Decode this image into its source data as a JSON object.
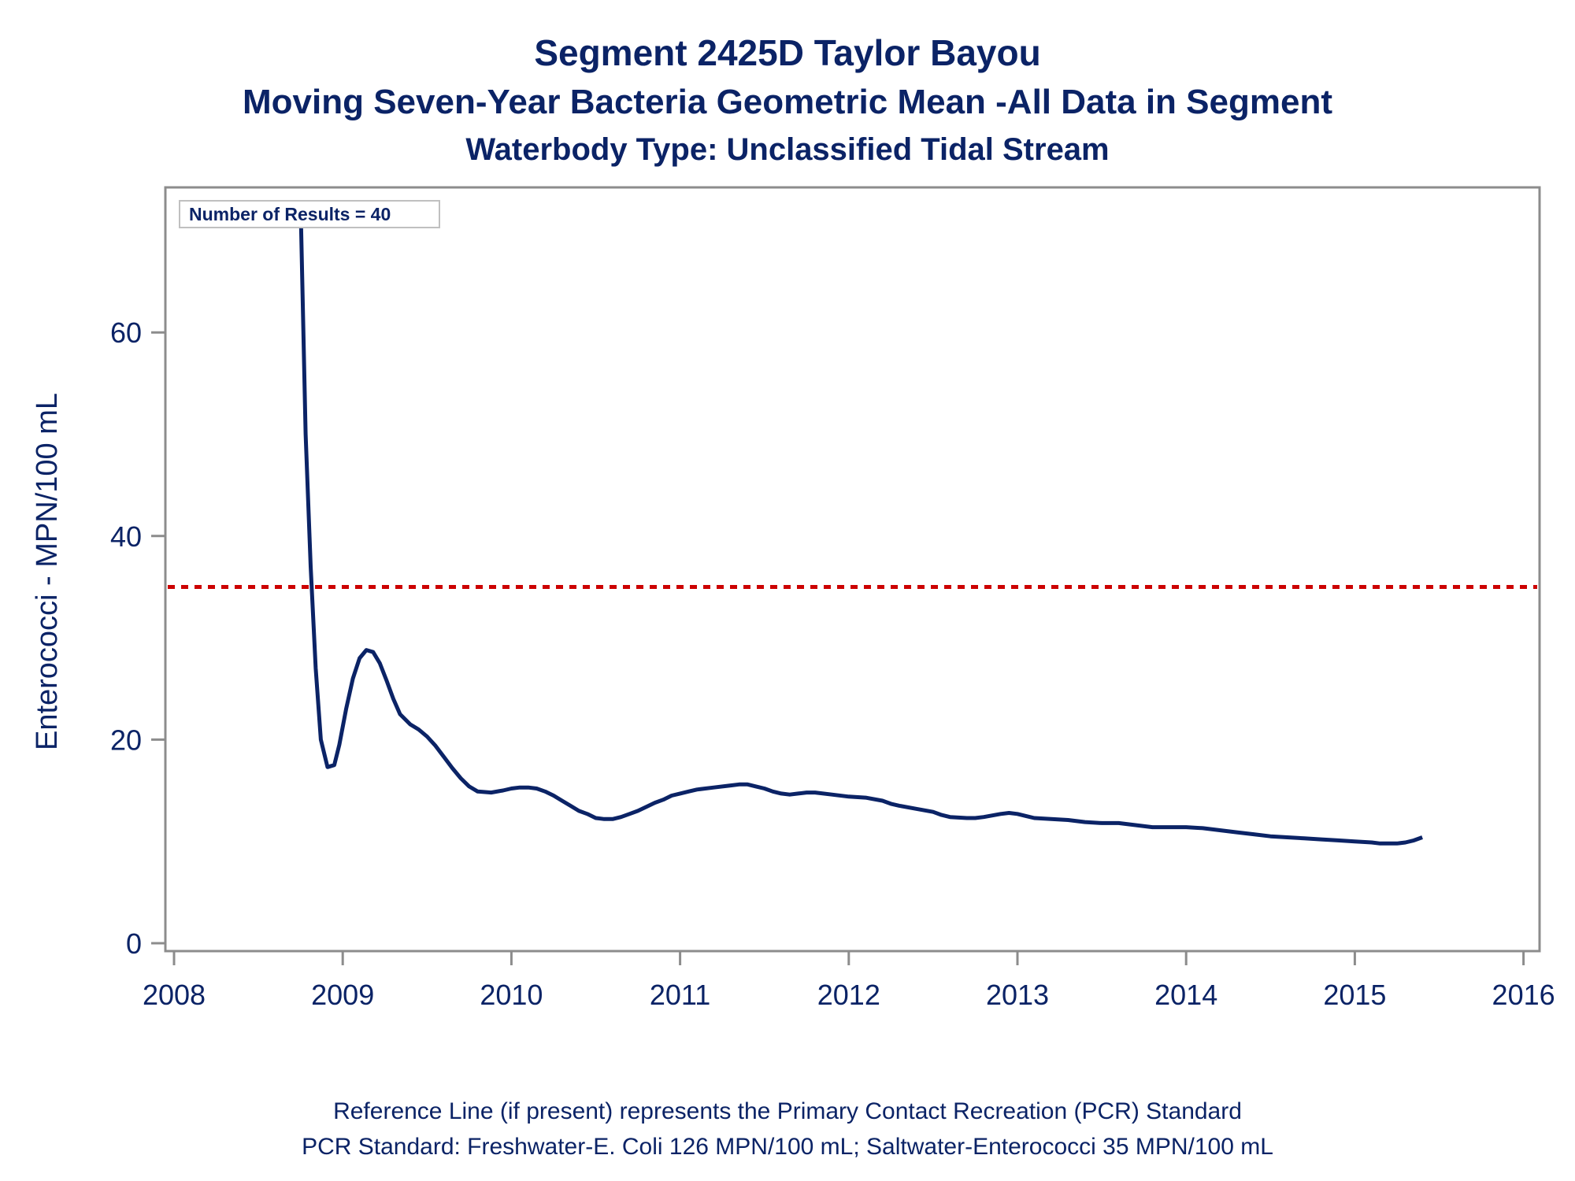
{
  "titles": {
    "line1": "Segment 2425D    Taylor Bayou",
    "line2": "Moving Seven-Year Bacteria Geometric Mean -All Data in Segment",
    "line3": "Waterbody Type: Unclassified Tidal Stream"
  },
  "footnotes": {
    "line1": "Reference Line (if present) represents the Primary Contact Recreation (PCR) Standard",
    "line2": "PCR Standard: Freshwater-E. Coli 126 MPN/100 mL; Saltwater-Enterococci 35 MPN/100 mL"
  },
  "colors": {
    "series": "#0b2366",
    "reference_line": "#cc0000",
    "frame": "#8c8c8c"
  },
  "chart_data": {
    "type": "line",
    "title": "Segment 2425D    Taylor Bayou",
    "subtitle": "Moving Seven-Year Bacteria Geometric Mean -All Data in Segment",
    "xlabel": "",
    "ylabel": "Enterococci - MPN/100 mL",
    "xlim": [
      2008,
      2016
    ],
    "ylim": [
      0,
      72
    ],
    "x_ticks": [
      2008,
      2009,
      2010,
      2011,
      2012,
      2013,
      2014,
      2015,
      2016
    ],
    "x_tick_labels": [
      "2008",
      "2009",
      "2010",
      "2011",
      "2012",
      "2013",
      "2014",
      "2015",
      "2016"
    ],
    "y_ticks": [
      0,
      20,
      40,
      60
    ],
    "y_tick_labels": [
      "0",
      "20",
      "40",
      "60"
    ],
    "grid": false,
    "annotation": "Number of Results = 40",
    "reference_line": {
      "y": 35,
      "style": "dotted"
    },
    "series": [
      {
        "x": [
          2008.75,
          2008.78,
          2008.81,
          2008.84,
          2008.87,
          2008.91,
          2008.95,
          2008.98,
          2009.02,
          2009.06,
          2009.1,
          2009.14,
          2009.18,
          2009.22,
          2009.26,
          2009.3,
          2009.34,
          2009.4,
          2009.45,
          2009.5,
          2009.55,
          2009.6,
          2009.65,
          2009.7,
          2009.75,
          2009.8,
          2009.88,
          2009.95,
          2010.0,
          2010.05,
          2010.1,
          2010.15,
          2010.2,
          2010.25,
          2010.3,
          2010.35,
          2010.4,
          2010.45,
          2010.5,
          2010.55,
          2010.6,
          2010.65,
          2010.7,
          2010.75,
          2010.8,
          2010.85,
          2010.9,
          2010.95,
          2011.0,
          2011.05,
          2011.1,
          2011.2,
          2011.3,
          2011.35,
          2011.4,
          2011.45,
          2011.5,
          2011.55,
          2011.6,
          2011.65,
          2011.7,
          2011.75,
          2011.8,
          2011.9,
          2012.0,
          2012.1,
          2012.2,
          2012.25,
          2012.3,
          2012.4,
          2012.5,
          2012.55,
          2012.6,
          2012.7,
          2012.75,
          2012.8,
          2012.9,
          2012.95,
          2013.0,
          2013.05,
          2013.1,
          2013.2,
          2013.3,
          2013.4,
          2013.5,
          2013.6,
          2013.7,
          2013.8,
          2013.9,
          2014.0,
          2014.1,
          2014.2,
          2014.3,
          2014.4,
          2014.5,
          2014.6,
          2014.7,
          2014.8,
          2014.9,
          2015.0,
          2015.1,
          2015.15,
          2015.2,
          2015.25,
          2015.3,
          2015.35,
          2015.4
        ],
        "y": [
          73,
          50,
          37,
          27,
          20,
          17.3,
          17.5,
          19.5,
          23,
          26,
          28,
          28.8,
          28.6,
          27.5,
          25.8,
          24,
          22.5,
          21.5,
          21,
          20.3,
          19.4,
          18.3,
          17.2,
          16.2,
          15.4,
          14.9,
          14.8,
          15,
          15.2,
          15.3,
          15.3,
          15.2,
          14.9,
          14.5,
          14,
          13.5,
          13,
          12.7,
          12.3,
          12.2,
          12.2,
          12.4,
          12.7,
          13,
          13.4,
          13.8,
          14.1,
          14.5,
          14.7,
          14.9,
          15.1,
          15.3,
          15.5,
          15.6,
          15.6,
          15.4,
          15.2,
          14.9,
          14.7,
          14.6,
          14.7,
          14.8,
          14.8,
          14.6,
          14.4,
          14.3,
          14,
          13.7,
          13.5,
          13.2,
          12.9,
          12.6,
          12.4,
          12.3,
          12.3,
          12.4,
          12.7,
          12.8,
          12.7,
          12.5,
          12.3,
          12.2,
          12.1,
          11.9,
          11.8,
          11.8,
          11.6,
          11.4,
          11.4,
          11.4,
          11.3,
          11.1,
          10.9,
          10.7,
          10.5,
          10.4,
          10.3,
          10.2,
          10.1,
          10,
          9.9,
          9.8,
          9.8,
          9.8,
          9.9,
          10.1,
          10.4
        ]
      }
    ]
  }
}
